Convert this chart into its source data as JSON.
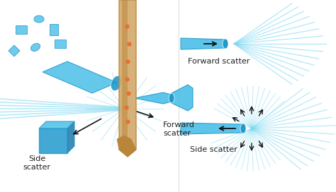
{
  "bg_color": "#ffffff",
  "cyan_light": "#7dd8f0",
  "cyan_mid": "#4bbfe8",
  "cyan_dark": "#2299cc",
  "tan_color": "#d4a96a",
  "tan_dark": "#b8853a",
  "orange_dot": "#e87030",
  "arrow_color": "#111111",
  "text_color": "#222222",
  "labels": {
    "side_scatter_left": "Side\nscatter",
    "forward_scatter_left": "Forward\nscatter",
    "forward_scatter_right": "Forward scatter",
    "side_scatter_right": "Side scatter"
  },
  "font_size": 8
}
